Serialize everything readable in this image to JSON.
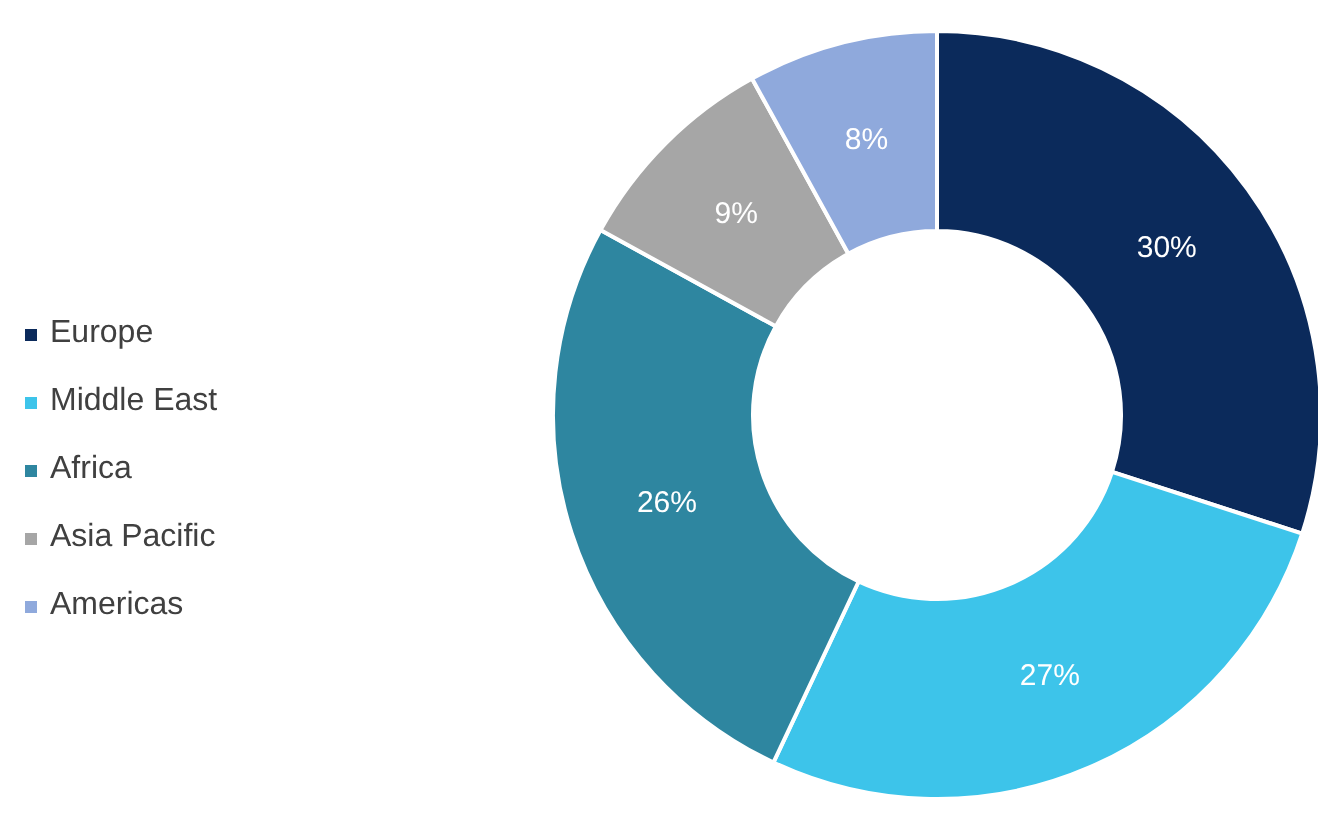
{
  "chart_data": {
    "type": "donut",
    "categories": [
      "Europe",
      "Middle East",
      "Africa",
      "Asia Pacific",
      "Americas"
    ],
    "values": [
      30,
      27,
      26,
      9,
      8
    ],
    "colors": [
      "#0b2a5b",
      "#3dc4ea",
      "#2e86a0",
      "#a6a6a6",
      "#8fa9dc"
    ],
    "value_labels": [
      "30%",
      "27%",
      "26%",
      "9%",
      "8%"
    ],
    "legend": "left"
  }
}
